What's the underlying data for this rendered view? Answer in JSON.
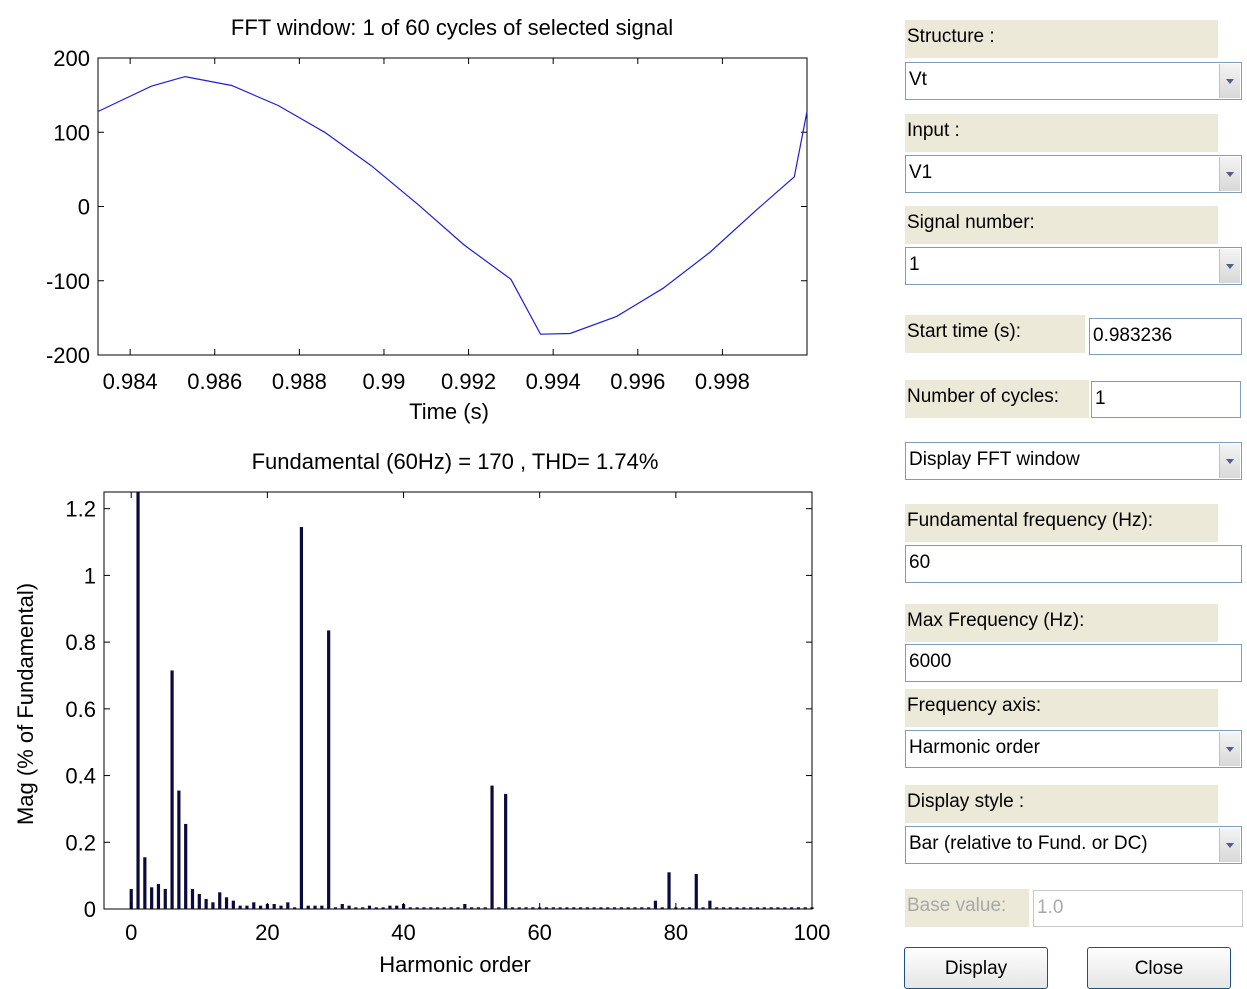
{
  "top_plot": {
    "title": "FFT window: 1 of 60 cycles of selected signal",
    "xlabel": "Time (s)",
    "y_ticks": [
      "200",
      "100",
      "0",
      "-100",
      "-200"
    ],
    "x_ticks": [
      "0.984",
      "0.986",
      "0.988",
      "0.99",
      "0.992",
      "0.994",
      "0.996",
      "0.998"
    ]
  },
  "bottom_plot": {
    "title": "Fundamental (60Hz) = 170 , THD= 1.74%",
    "xlabel": "Harmonic order",
    "ylabel": "Mag (% of Fundamental)",
    "y_ticks": [
      "1.2",
      "1",
      "0.8",
      "0.6",
      "0.4",
      "0.2",
      "0"
    ],
    "x_ticks": [
      "0",
      "20",
      "40",
      "60",
      "80",
      "100"
    ]
  },
  "chart_data": [
    {
      "type": "line",
      "title": "FFT window: 1 of 60 cycles of selected signal",
      "xlabel": "Time (s)",
      "ylabel": "",
      "xlim": [
        0.98324,
        1.0
      ],
      "ylim": [
        -200,
        200
      ],
      "series": [
        {
          "x": [
            0.98324,
            0.9845,
            0.9853,
            0.9864,
            0.9875,
            0.9886,
            0.9897,
            0.9908,
            0.9919,
            0.993,
            0.9937,
            0.9944,
            0.9955,
            0.9966,
            0.9977,
            0.9988,
            0.9997,
            1.0
          ],
          "values": [
            128,
            162,
            175,
            163,
            136,
            100,
            55,
            3,
            -52,
            -98,
            -172,
            -171,
            -148,
            -110,
            -62,
            -5,
            40,
            128
          ]
        }
      ],
      "grid": false,
      "color": "#1f1fd6"
    },
    {
      "type": "bar",
      "title": "Fundamental (60Hz) = 170 , THD= 1.74%",
      "xlabel": "Harmonic order",
      "ylabel": "Mag (% of Fundamental)",
      "xlim": [
        -4,
        100
      ],
      "ylim": [
        0,
        1.25
      ],
      "x": [
        0,
        1,
        2,
        3,
        4,
        5,
        6,
        7,
        8,
        9,
        10,
        11,
        12,
        13,
        14,
        15,
        16,
        17,
        18,
        19,
        20,
        21,
        22,
        23,
        24,
        25,
        26,
        27,
        28,
        29,
        30,
        31,
        32,
        33,
        34,
        35,
        36,
        37,
        38,
        39,
        40,
        41,
        42,
        43,
        44,
        45,
        46,
        47,
        48,
        49,
        50,
        51,
        52,
        53,
        54,
        55,
        56,
        57,
        58,
        59,
        60,
        61,
        62,
        63,
        64,
        65,
        66,
        67,
        68,
        69,
        70,
        71,
        72,
        73,
        74,
        75,
        76,
        77,
        78,
        79,
        80,
        81,
        82,
        83,
        84,
        85,
        86,
        87,
        88,
        89,
        90,
        91,
        92,
        93,
        94,
        95,
        96,
        97,
        98,
        99,
        100
      ],
      "values": [
        0.06,
        1.25,
        0.155,
        0.065,
        0.075,
        0.06,
        0.715,
        0.355,
        0.255,
        0.06,
        0.045,
        0.03,
        0.02,
        0.05,
        0.035,
        0.025,
        0.01,
        0.01,
        0.02,
        0.01,
        0.015,
        0.015,
        0.01,
        0.02,
        0.005,
        1.145,
        0.01,
        0.01,
        0.01,
        0.835,
        0.005,
        0.015,
        0.01,
        0.005,
        0.005,
        0.01,
        0.005,
        0.005,
        0.01,
        0.01,
        0.015,
        0.005,
        0.005,
        0.005,
        0.005,
        0.005,
        0.005,
        0.005,
        0.005,
        0.015,
        0.005,
        0.005,
        0.005,
        0.37,
        0.005,
        0.345,
        0.005,
        0.005,
        0.005,
        0.005,
        0.005,
        0.005,
        0.005,
        0.005,
        0.005,
        0.005,
        0.005,
        0.005,
        0.005,
        0.005,
        0.005,
        0.005,
        0.005,
        0.005,
        0.005,
        0.005,
        0.005,
        0.025,
        0.005,
        0.11,
        0.005,
        0.005,
        0.005,
        0.105,
        0.005,
        0.025,
        0.005,
        0.005,
        0.005,
        0.005,
        0.005,
        0.005,
        0.005,
        0.005,
        0.005,
        0.005,
        0.005,
        0.005,
        0.005,
        0.005,
        0.005
      ],
      "grid": false,
      "color": "#0a0a3c"
    }
  ],
  "panel": {
    "structure_label": "Structure :",
    "structure_value": "Vt",
    "input_label": "Input :",
    "input_value": "V1",
    "signal_number_label": "Signal number:",
    "signal_number_value": "1",
    "start_time_label": "Start time (s):",
    "start_time_value": "0.983236",
    "num_cycles_label": "Number of cycles:",
    "num_cycles_value": "1",
    "display_mode_value": "Display FFT window",
    "fund_freq_label": "Fundamental frequency (Hz):",
    "fund_freq_value": "60",
    "max_freq_label": "Max Frequency (Hz):",
    "max_freq_value": "6000",
    "freq_axis_label": "Frequency axis:",
    "freq_axis_value": "Harmonic order",
    "display_style_label": "Display style :",
    "display_style_value": "Bar (relative to Fund. or DC)",
    "base_value_label": "Base value:",
    "base_value_value": "1.0",
    "display_button": "Display",
    "close_button": "Close",
    "dropdown_icon": "chevron-down-icon"
  }
}
